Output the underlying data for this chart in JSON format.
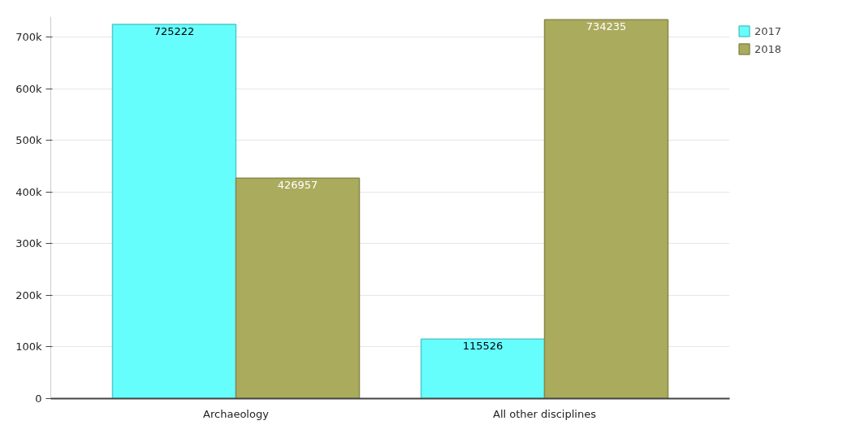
{
  "chart_data": {
    "type": "bar",
    "categories": [
      "Archaeology",
      "All other disciplines"
    ],
    "series": [
      {
        "name": "2017",
        "color": "#66fdfd",
        "values": [
          725222,
          115526
        ]
      },
      {
        "name": "2018",
        "color": "#abab5e",
        "values": [
          426957,
          734235
        ]
      }
    ],
    "ylim": [
      0,
      740000
    ],
    "yticks": [
      {
        "value": 0,
        "label": "0"
      },
      {
        "value": 100000,
        "label": "100k"
      },
      {
        "value": 200000,
        "label": "200k"
      },
      {
        "value": 300000,
        "label": "300k"
      },
      {
        "value": 400000,
        "label": "400k"
      },
      {
        "value": 500000,
        "label": "500k"
      },
      {
        "value": 600000,
        "label": "600k"
      },
      {
        "value": 700000,
        "label": "700k"
      }
    ],
    "grid": "y",
    "legend": "top right",
    "data_labels": true
  }
}
